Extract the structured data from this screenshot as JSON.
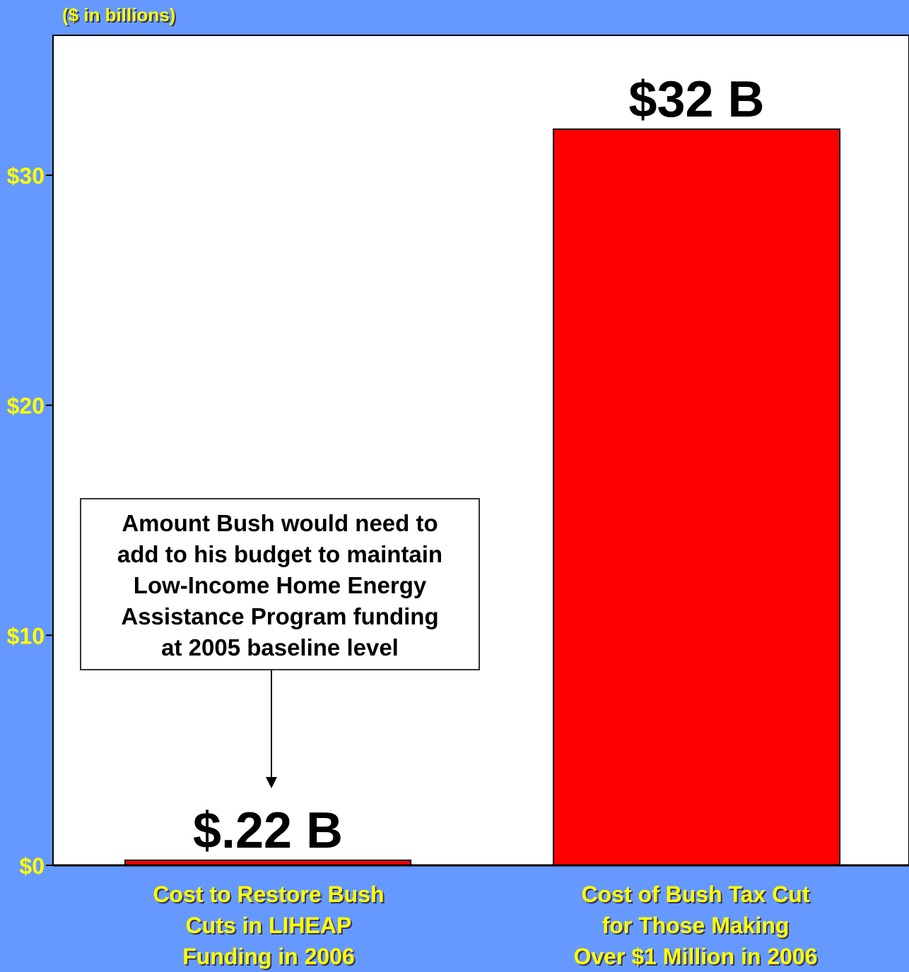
{
  "chart_data": {
    "type": "bar",
    "title": "",
    "units_label": "($ in billions)",
    "ylabel": "",
    "xlabel": "",
    "categories": [
      "Cost to Restore Bush\nCuts in LIHEAP\nFunding in 2006",
      "Cost of Bush Tax Cut\nfor Those Making\nOver $1 Million in 2006"
    ],
    "values": [
      0.22,
      32
    ],
    "data_labels": [
      "$.22 B",
      "$32 B"
    ],
    "ylim": [
      0,
      36
    ],
    "yticks": [
      0,
      10,
      20,
      30
    ],
    "ytick_labels": [
      "$0",
      "$10",
      "$20",
      "$30"
    ],
    "bar_color": "#FF0000",
    "background_color": "#6699FF",
    "plot_color": "#FFFFFF",
    "label_color": "#FFFF00",
    "annotation": {
      "text": "Amount Bush would need to\nadd to his budget to maintain\nLow-Income Home Energy\nAssistance Program funding\nat 2005 baseline level",
      "points_to_category": 0
    },
    "grid": false,
    "legend": "none"
  }
}
